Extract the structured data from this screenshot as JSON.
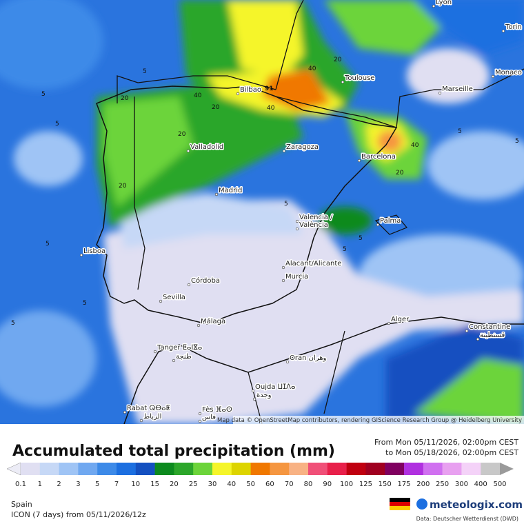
{
  "header": {
    "title": "Accumulated total precipitation (mm)",
    "from": "From Mon 05/11/2026, 02:00pm CEST",
    "to": "to Mon 05/18/2026, 02:00pm CEST"
  },
  "map": {
    "attribution": "Map data © OpenStreetMap contributors, rendering GIScience Research Group @ Heidelberg University",
    "cities": [
      "Lyon",
      "Torin",
      "Monaco",
      "Toulouse",
      "Marseille",
      "Bilbao",
      "Valladolid",
      "Zaragoza",
      "Barcelona",
      "Madrid",
      "Valencia /",
      "València",
      "Palma",
      "Lisboa",
      "Alacant/Alicante",
      "Murcia",
      "Córdoba",
      "Sevilla",
      "Málaga",
      "Alger",
      "Constantine",
      "قسنطينة",
      "Tanger ⵟⴰⵏⴵⴰ",
      "طنجة",
      "Oran وهران",
      "Oujda ⵡⵊⴷⴰ",
      "وجدة",
      "Rabat ⵕⴱⴰⵟ",
      "الرباط",
      "Fès ⴼⴰⵙ",
      "فاس"
    ],
    "contour_labels": [
      5,
      5,
      5,
      5,
      5,
      5,
      5,
      5,
      5,
      5,
      5,
      20,
      20,
      20,
      20,
      20,
      20,
      40,
      40,
      40,
      40,
      91
    ]
  },
  "legend": {
    "ticks": [
      0.1,
      1,
      2,
      3,
      5,
      7,
      10,
      15,
      20,
      25,
      30,
      40,
      50,
      60,
      70,
      80,
      90,
      100,
      125,
      150,
      175,
      200,
      250,
      300,
      400,
      500
    ],
    "colors": [
      "#e0dff2",
      "#c6d8f6",
      "#9fc4f5",
      "#70a8f0",
      "#3d8ae8",
      "#1c6fe0",
      "#1450c0",
      "#0c8a1e",
      "#2ca62a",
      "#6cd43a",
      "#f5f52a",
      "#ddd400",
      "#f07800",
      "#f59640",
      "#f8b284",
      "#f05078",
      "#e8204a",
      "#c00010",
      "#a00020",
      "#800060",
      "#b030e0",
      "#d070f0",
      "#e8a0f0",
      "#f4d2f8",
      "#c8c8c8"
    ],
    "under_color": "#ececf6",
    "over_color": "#9a9a9a"
  },
  "footer": {
    "region": "Spain",
    "model": "ICON (7 days) from 05/11/2026/12z",
    "brand": "meteologix.com",
    "source": "Data: Deutscher Wetterdienst (DWD)"
  }
}
